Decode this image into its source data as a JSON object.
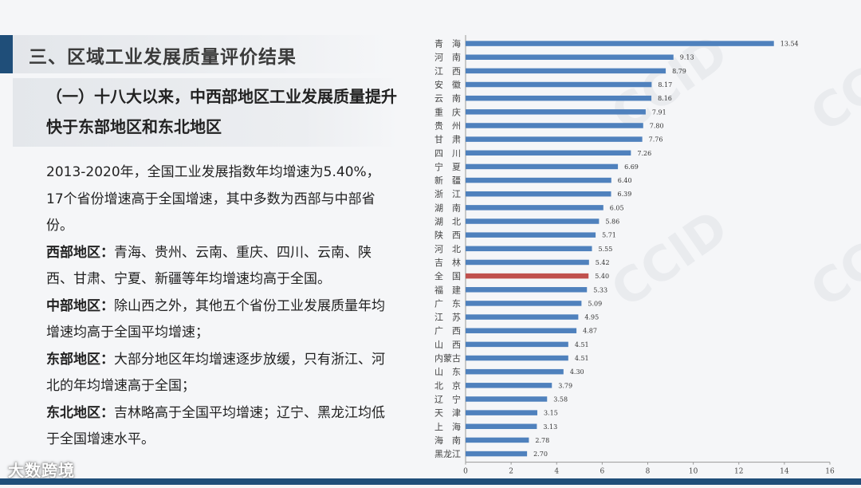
{
  "header": {
    "section_title": "三、区域工业发展质量评价结果",
    "sub_title": "（一）十八大以来，中西部地区工业发展质量提升快于东部地区和东北地区"
  },
  "body": {
    "intro": "2013-2020年，全国工业发展指数年均增速为5.40%，17个省份增速高于全国增速，其中多数为西部与中部省份。",
    "west_label": "西部地区：",
    "west_text": "青海、贵州、云南、重庆、四川、云南、陕西、甘肃、宁夏、新疆等年均增速均高于全国。",
    "central_label": "中部地区：",
    "central_text": "除山西之外，其他五个省份工业发展质量年均增速均高于全国平均增速；",
    "east_label": "东部地区：",
    "east_text": "大部分地区年均增速逐步放缓，只有浙江、河北的年均增速高于全国；",
    "northeast_label": "东北地区：",
    "northeast_text": "吉林略高于全国平均增速；辽宁、黑龙江均低于全国增速水平。"
  },
  "logo": {
    "text": "大数跨境"
  },
  "watermark": {
    "text": "CCID"
  },
  "colors": {
    "bar": "#4f81bd",
    "highlight": "#c0504d",
    "accent": "#1f4e79"
  },
  "chart_data": {
    "type": "bar",
    "orientation": "horizontal",
    "title": "",
    "xlabel": "",
    "ylabel": "",
    "xlim": [
      0,
      16
    ],
    "xticks": [
      0,
      2,
      4,
      6,
      8,
      10,
      12,
      14,
      16
    ],
    "highlight_category": "全　国",
    "categories": [
      "青　海",
      "河　南",
      "江　西",
      "安　徽",
      "云　南",
      "重　庆",
      "贵　州",
      "甘　肃",
      "四　川",
      "宁　夏",
      "新　疆",
      "浙　江",
      "湖　南",
      "湖　北",
      "陕　西",
      "河　北",
      "吉　林",
      "全　国",
      "福　建",
      "广　东",
      "江　苏",
      "广　西",
      "山　西",
      "内蒙古",
      "山　东",
      "北　京",
      "辽　宁",
      "天　津",
      "上　海",
      "海　南",
      "黑龙江"
    ],
    "values": [
      13.54,
      9.13,
      8.79,
      8.17,
      8.16,
      7.91,
      7.8,
      7.76,
      7.26,
      6.69,
      6.4,
      6.39,
      6.05,
      5.86,
      5.71,
      5.55,
      5.42,
      5.4,
      5.33,
      5.09,
      4.95,
      4.87,
      4.51,
      4.51,
      4.3,
      3.79,
      3.58,
      3.15,
      3.13,
      2.78,
      2.7
    ],
    "labels": [
      "13.54",
      "9.13",
      "8.79",
      "8.17",
      "8.16",
      "7.91",
      "7.80",
      "7.76",
      "7.26",
      "6.69",
      "6.40",
      "6.39",
      "6.05",
      "5.86",
      "5.71",
      "5.55",
      "5.42",
      "5.40",
      "5.33",
      "5.09",
      "4.95",
      "4.87",
      "4.51",
      "4.51",
      "4.30",
      "3.79",
      "3.58",
      "3.15",
      "3.13",
      "2.78",
      "2.70"
    ]
  }
}
